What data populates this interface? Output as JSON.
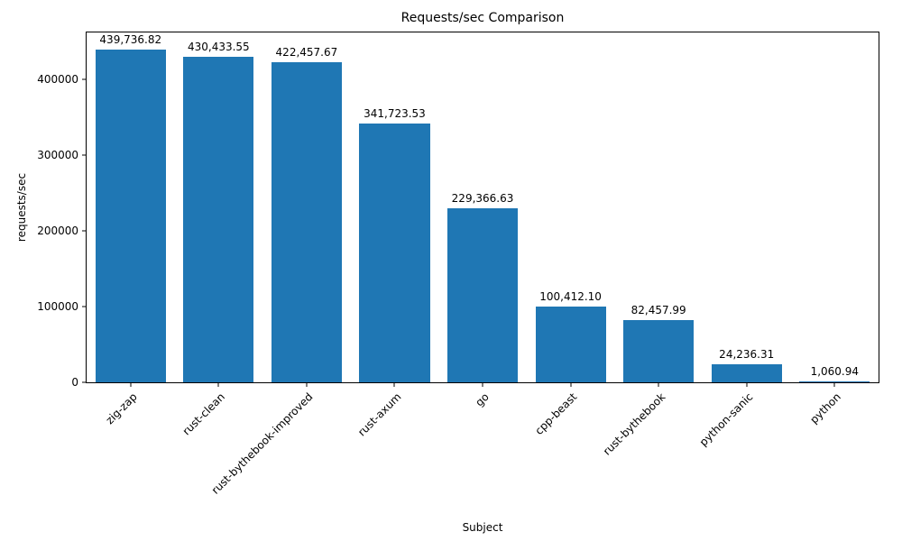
{
  "chart_data": {
    "type": "bar",
    "title": "Requests/sec Comparison",
    "xlabel": "Subject",
    "ylabel": "requests/sec",
    "categories": [
      "zig-zap",
      "rust-clean",
      "rust-bythebook-improved",
      "rust-axum",
      "go",
      "cpp-beast",
      "rust-bythebook",
      "python-sanic",
      "python"
    ],
    "values": [
      439736.82,
      430433.55,
      422457.67,
      341723.53,
      229366.63,
      100412.1,
      82457.99,
      24236.31,
      1060.94
    ],
    "value_labels": [
      "439,736.82",
      "430,433.55",
      "422,457.67",
      "341,723.53",
      "229,366.63",
      "100,412.10",
      "82,457.99",
      "24,236.31",
      "1,060.94"
    ],
    "yticks": [
      0,
      100000,
      200000,
      300000,
      400000
    ],
    "ytick_labels": [
      "0",
      "100000",
      "200000",
      "300000",
      "400000"
    ],
    "ylim": [
      0,
      462000
    ],
    "bar_color": "#1f77b4",
    "grid": false,
    "legend_position": "none"
  }
}
